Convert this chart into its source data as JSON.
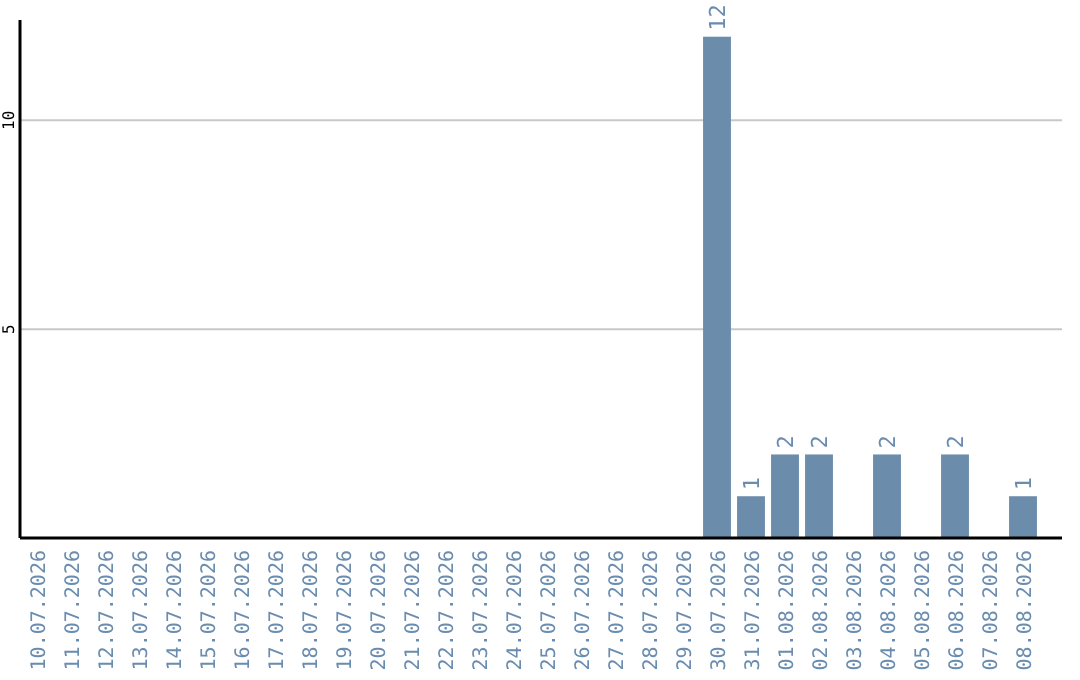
{
  "chart_data": {
    "type": "bar",
    "categories": [
      "10.07.2026",
      "11.07.2026",
      "12.07.2026",
      "13.07.2026",
      "14.07.2026",
      "15.07.2026",
      "16.07.2026",
      "17.07.2026",
      "18.07.2026",
      "19.07.2026",
      "20.07.2026",
      "21.07.2026",
      "22.07.2026",
      "23.07.2026",
      "24.07.2026",
      "25.07.2026",
      "26.07.2026",
      "27.07.2026",
      "28.07.2026",
      "29.07.2026",
      "30.07.2026",
      "31.07.2026",
      "01.08.2026",
      "02.08.2026",
      "03.08.2026",
      "04.08.2026",
      "05.08.2026",
      "06.08.2026",
      "07.08.2026",
      "08.08.2026"
    ],
    "values": [
      0,
      0,
      0,
      0,
      0,
      0,
      0,
      0,
      0,
      0,
      0,
      0,
      0,
      0,
      0,
      0,
      0,
      0,
      0,
      0,
      12,
      1,
      2,
      2,
      0,
      2,
      0,
      2,
      0,
      1
    ],
    "value_labels": [
      null,
      null,
      null,
      null,
      null,
      null,
      null,
      null,
      null,
      null,
      null,
      null,
      null,
      null,
      null,
      null,
      null,
      null,
      null,
      null,
      "12",
      "1",
      "2",
      "2",
      null,
      "2",
      null,
      "2",
      null,
      "1"
    ],
    "color": "#6b8cab",
    "ylim": [
      0,
      12.4
    ],
    "yticks": [
      5,
      10
    ],
    "grid": "y"
  }
}
